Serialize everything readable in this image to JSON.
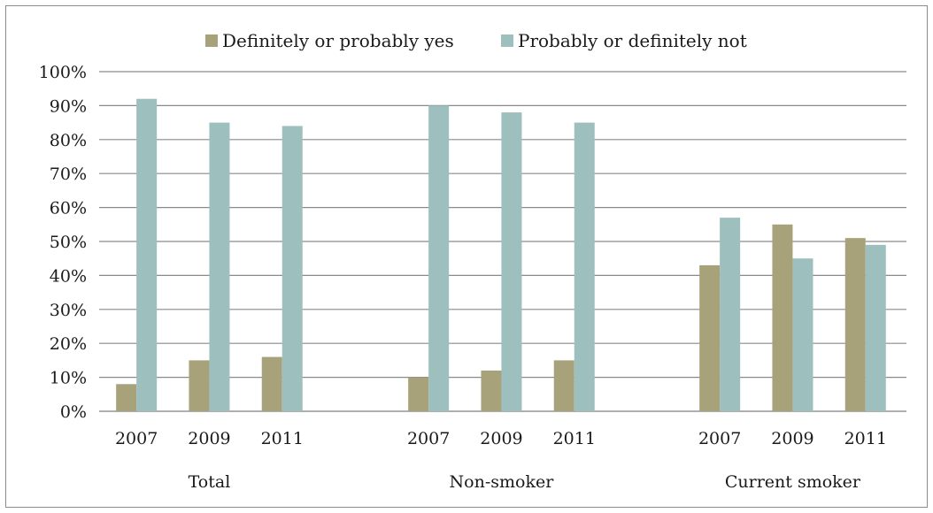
{
  "chart_data": {
    "type": "bar",
    "groups": [
      {
        "name": "Total",
        "categories": [
          "2007",
          "2009",
          "2011"
        ]
      },
      {
        "name": "Non-smoker",
        "categories": [
          "2007",
          "2009",
          "2011"
        ]
      },
      {
        "name": "Current smoker",
        "categories": [
          "2007",
          "2009",
          "2011"
        ]
      }
    ],
    "series": [
      {
        "name": "Definitely or probably yes",
        "color": "#a8a27a",
        "values": [
          8,
          15,
          16,
          10,
          12,
          15,
          43,
          55,
          51
        ]
      },
      {
        "name": "Probably or definitely not",
        "color": "#9dbfbd",
        "values": [
          92,
          85,
          84,
          90,
          88,
          85,
          57,
          45,
          49
        ]
      }
    ],
    "y_ticks": [
      "0%",
      "10%",
      "20%",
      "30%",
      "40%",
      "50%",
      "60%",
      "70%",
      "80%",
      "90%",
      "100%"
    ],
    "ylim": [
      0,
      100
    ],
    "grid": true,
    "legend": "top-center"
  }
}
